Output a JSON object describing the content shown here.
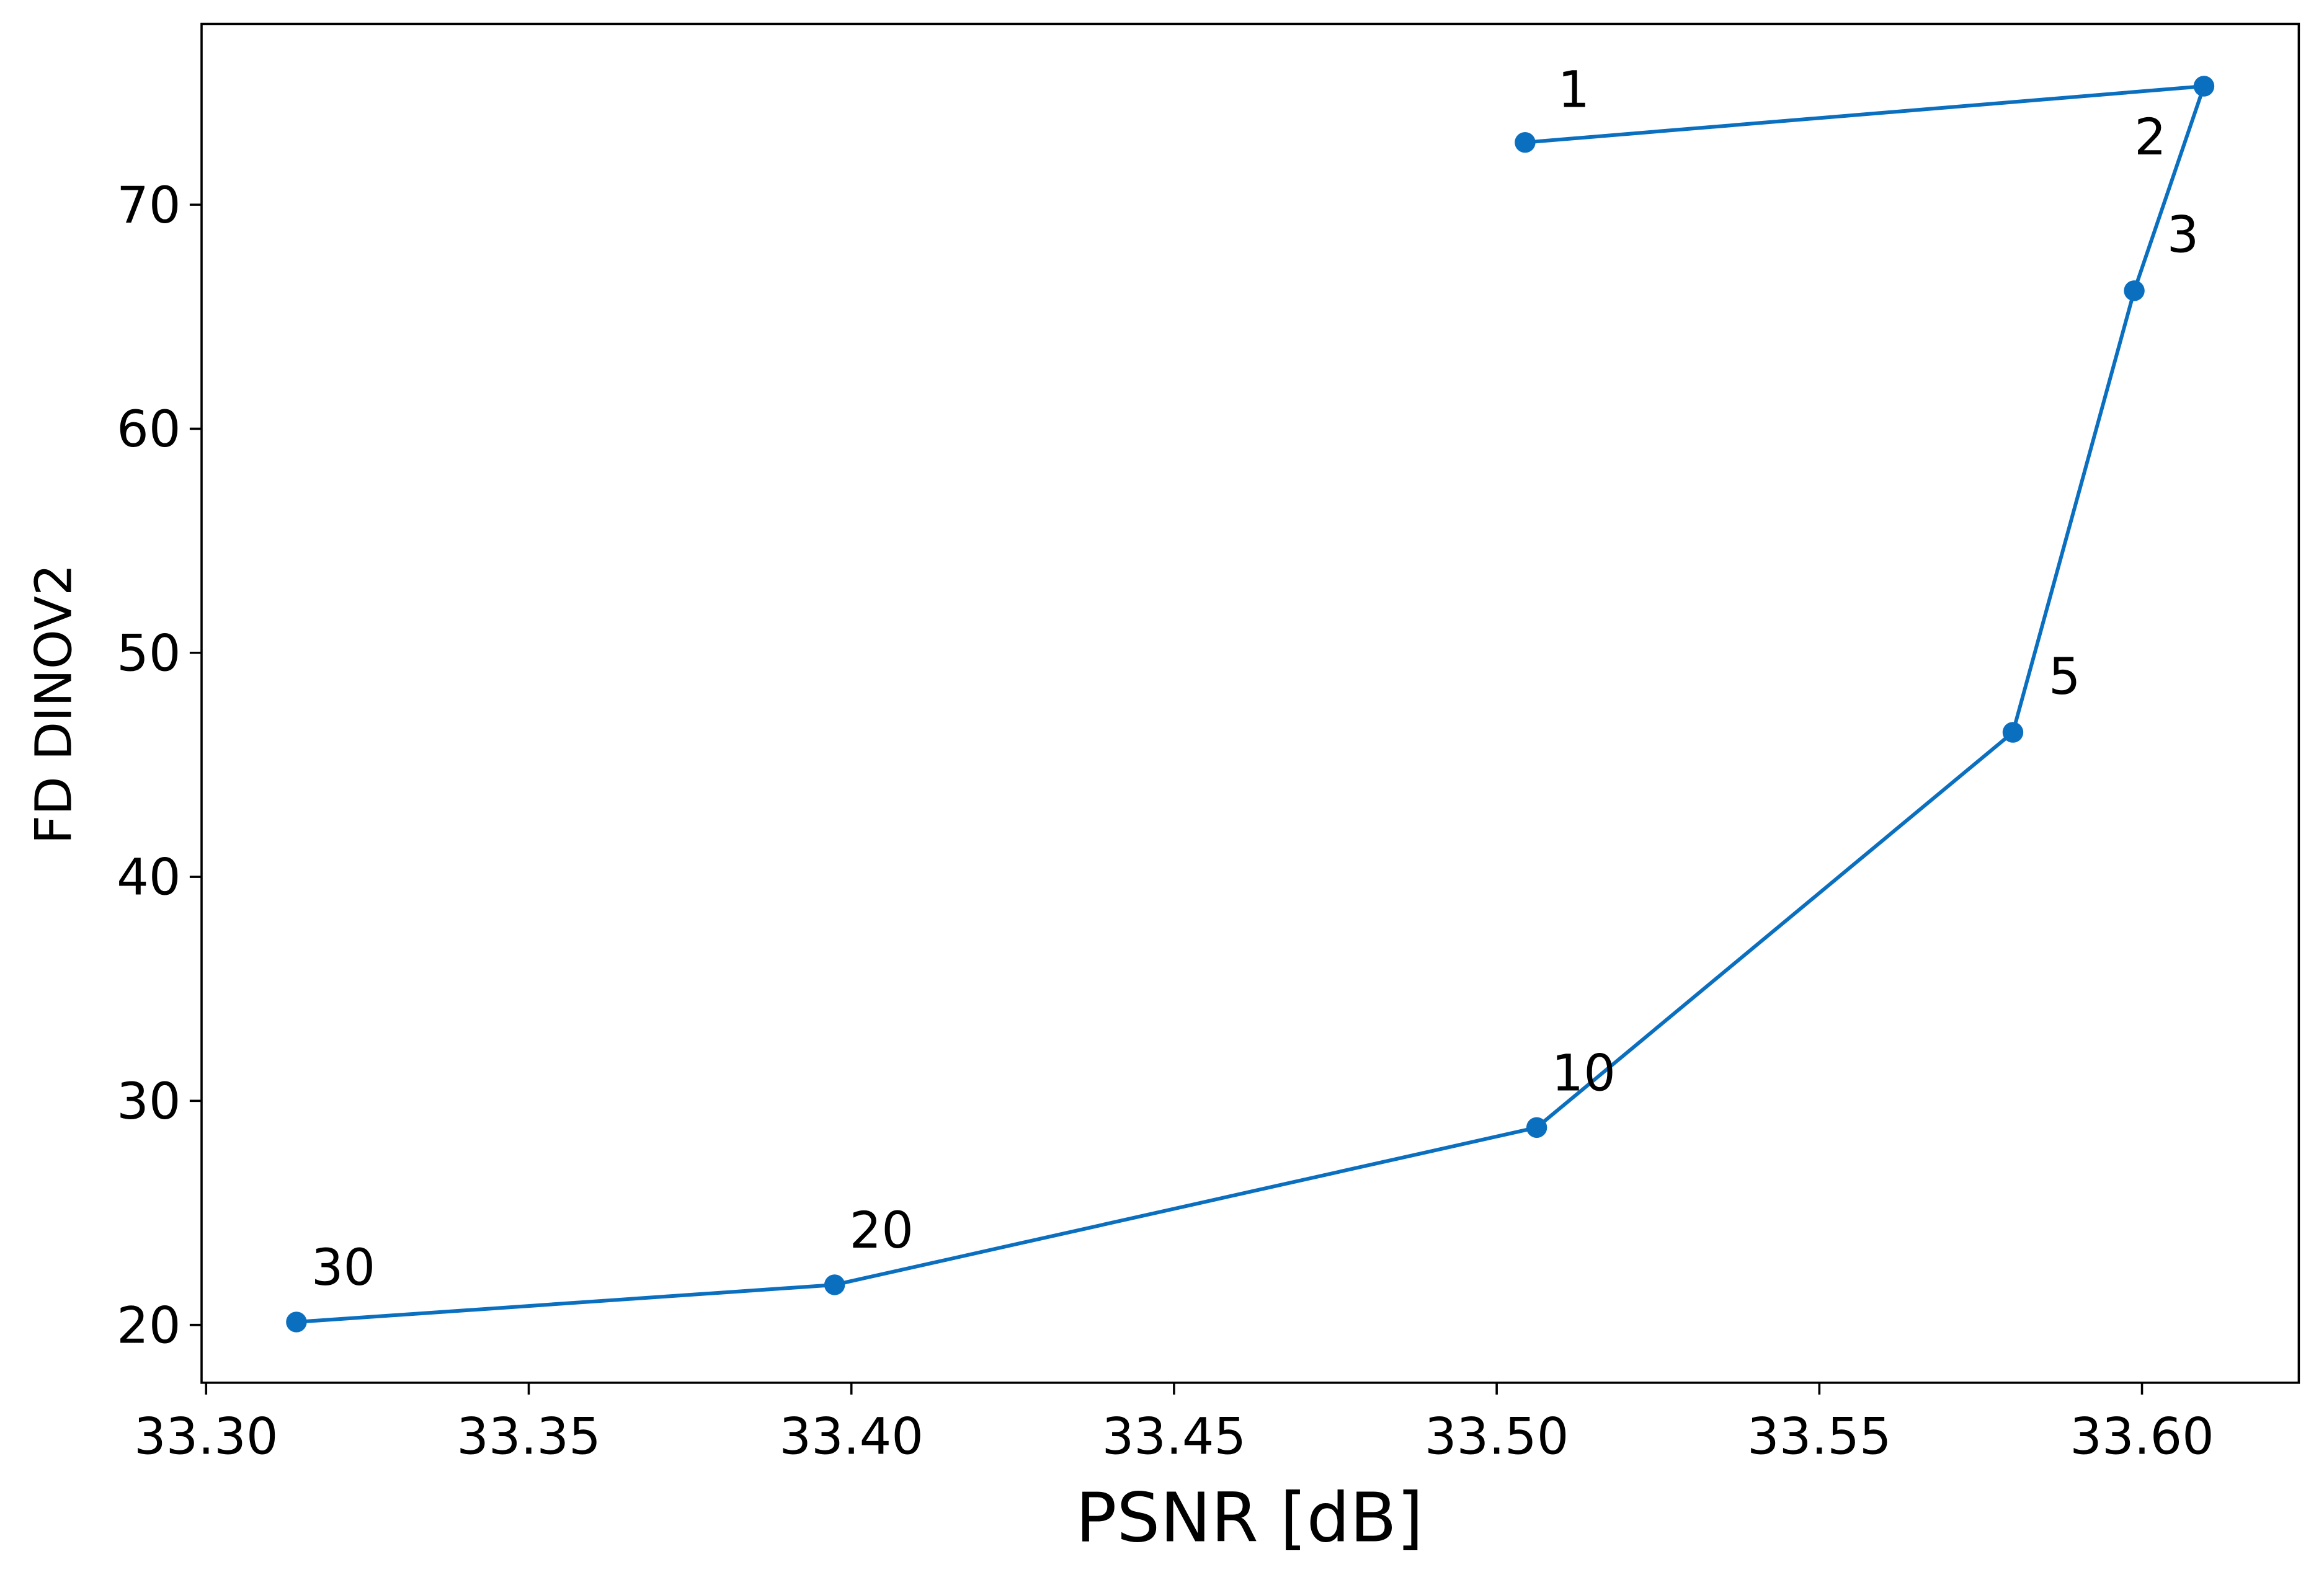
{
  "chart_data": {
    "type": "line",
    "x_label": "PSNR [dB]",
    "y_label": "FD DINOV2",
    "series": [
      {
        "color": "#0b6fc0",
        "x": [
          33.5044,
          33.6096,
          33.5988,
          33.58,
          33.5062,
          33.3974,
          33.314
        ],
        "values": [
          72.78,
          75.29,
          66.16,
          46.45,
          28.81,
          21.79,
          20.13
        ],
        "point_labels": [
          "1",
          "2",
          "3",
          "5",
          "10",
          "20",
          "30"
        ]
      }
    ],
    "xlim": [
      33.2993,
      33.6243
    ],
    "ylim": [
      17.42,
      78.07
    ],
    "xticks": [
      {
        "value": 33.3,
        "label": "33.30"
      },
      {
        "value": 33.35,
        "label": "33.35"
      },
      {
        "value": 33.4,
        "label": "33.40"
      },
      {
        "value": 33.45,
        "label": "33.45"
      },
      {
        "value": 33.5,
        "label": "33.50"
      },
      {
        "value": 33.55,
        "label": "33.55"
      },
      {
        "value": 33.6,
        "label": "33.60"
      }
    ],
    "yticks": [
      20,
      30,
      40,
      50,
      60,
      70
    ],
    "grid": false
  }
}
